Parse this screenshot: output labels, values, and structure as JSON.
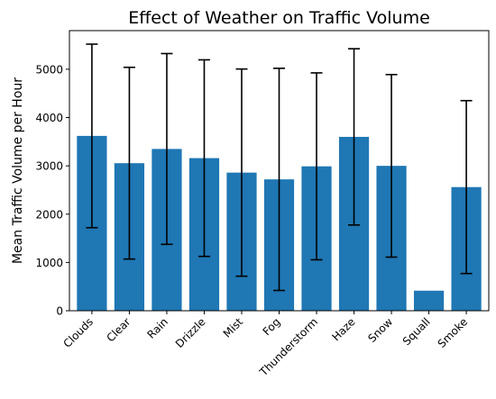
{
  "chart_data": {
    "type": "bar",
    "title": "Effect of Weather on Traffic Volume",
    "xlabel": "",
    "ylabel": "Mean Traffic Volume per Hour",
    "categories": [
      "Clouds",
      "Clear",
      "Rain",
      "Drizzle",
      "Mist",
      "Fog",
      "Thunderstorm",
      "Haze",
      "Snow",
      "Squall",
      "Smoke"
    ],
    "values": [
      3620,
      3055,
      3350,
      3160,
      2860,
      2720,
      2990,
      3600,
      3000,
      415,
      2560
    ],
    "error": [
      1900,
      1985,
      1975,
      2035,
      2145,
      2300,
      1935,
      1825,
      1890,
      0,
      1790
    ],
    "ylim": [
      0,
      5800
    ],
    "yticks": [
      0,
      1000,
      2000,
      3000,
      4000,
      5000
    ],
    "ytick_labels": [
      "0",
      "1000",
      "2000",
      "3000",
      "4000",
      "5000"
    ],
    "bar_color": "#1f77b4",
    "error_color": "#000000",
    "grid": false,
    "legend": "none"
  }
}
